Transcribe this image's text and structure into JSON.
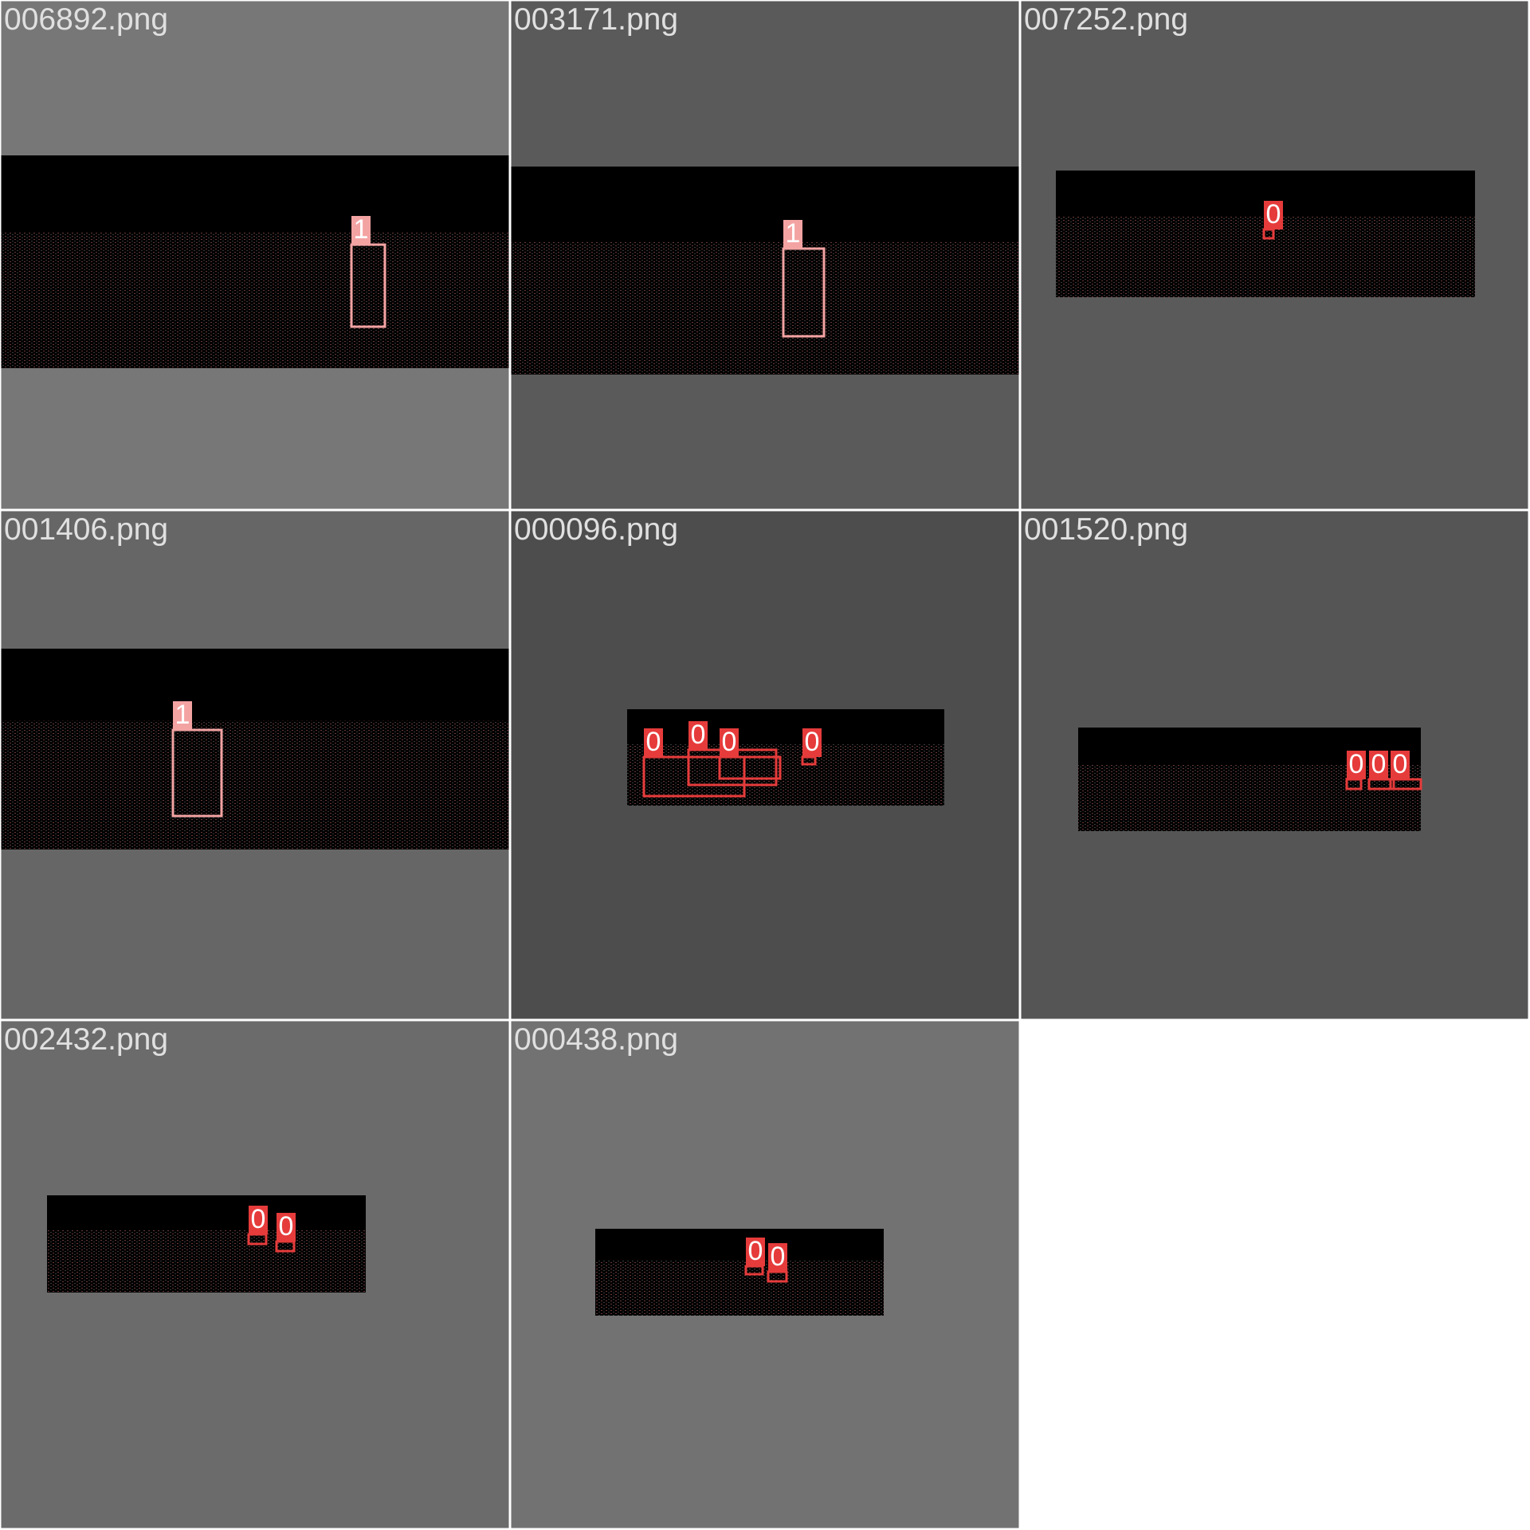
{
  "tiles": [
    {
      "filename": "006892.png",
      "labels": [
        "1"
      ]
    },
    {
      "filename": "003171.png",
      "labels": [
        "1"
      ]
    },
    {
      "filename": "007252.png",
      "labels": [
        "0"
      ]
    },
    {
      "filename": "001406.png",
      "labels": [
        "1"
      ]
    },
    {
      "filename": "000096.png",
      "labels": [
        "0",
        "0",
        "0",
        "0"
      ]
    },
    {
      "filename": "001520.png",
      "labels": [
        "0",
        "0",
        "0"
      ]
    },
    {
      "filename": "002432.png",
      "labels": [
        "0",
        "0"
      ]
    },
    {
      "filename": "000438.png",
      "labels": [
        "0",
        "0"
      ]
    }
  ]
}
